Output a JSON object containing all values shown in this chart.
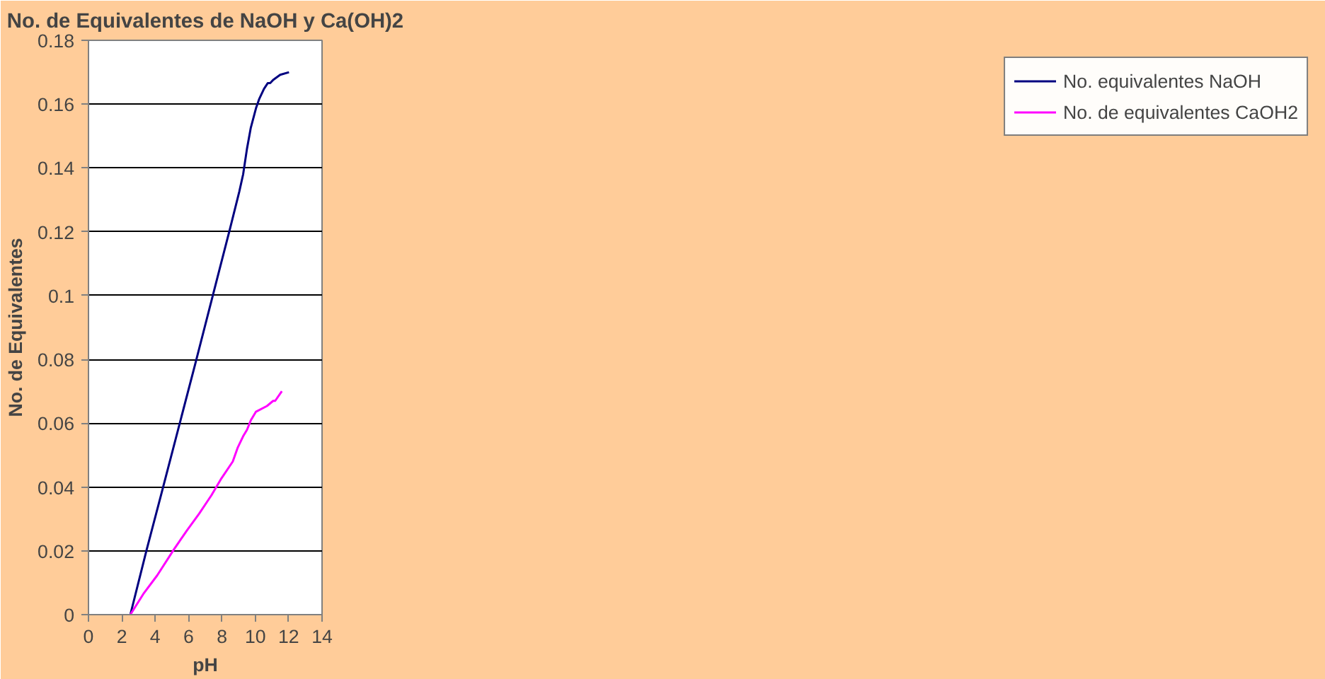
{
  "chart_data": {
    "type": "line",
    "title": "No. de Equivalentes de NaOH y Ca(OH)2",
    "xlabel": "pH",
    "ylabel": "No. de Equivalentes",
    "xlim": [
      0,
      14
    ],
    "xticks": [
      0,
      2,
      4,
      6,
      8,
      10,
      12,
      14
    ],
    "ylim": [
      0,
      0.18
    ],
    "yticks": [
      0,
      0.02,
      0.04,
      0.06,
      0.08,
      0.1,
      0.12,
      0.14,
      0.16,
      0.18
    ],
    "grid": "y",
    "legend": "right",
    "marker": "none",
    "line_style": "solid",
    "series": [
      {
        "name": "No. equivalentes NaOH",
        "color": "#000080",
        "x": [
          2.51,
          3.48,
          4.4,
          6.44,
          7.83,
          8.48,
          8.82,
          9.04,
          9.27,
          9.5,
          9.73,
          10.04,
          10.24,
          10.52,
          10.75,
          10.89,
          11.07,
          11.49,
          12.02
        ],
        "values": [
          0,
          0.0202,
          0.0385,
          0.0794,
          0.1077,
          0.1209,
          0.128,
          0.1326,
          0.138,
          0.146,
          0.1526,
          0.1587,
          0.1617,
          0.1648,
          0.1666,
          0.1666,
          0.1676,
          0.1692,
          0.17
        ]
      },
      {
        "name": "No. de equivalentes CaOH2",
        "color": "#ff00ff",
        "x": [
          2.51,
          3.29,
          4.12,
          5.14,
          5.89,
          6.63,
          7.37,
          7.92,
          8.65,
          8.95,
          9.27,
          9.5,
          9.73,
          10.04,
          10.7,
          11.07,
          11.19,
          11.59
        ],
        "values": [
          0,
          0.0065,
          0.0123,
          0.0206,
          0.0263,
          0.0316,
          0.0374,
          0.0423,
          0.048,
          0.0524,
          0.0559,
          0.0579,
          0.0609,
          0.0636,
          0.0654,
          0.067,
          0.067,
          0.07
        ]
      }
    ]
  }
}
